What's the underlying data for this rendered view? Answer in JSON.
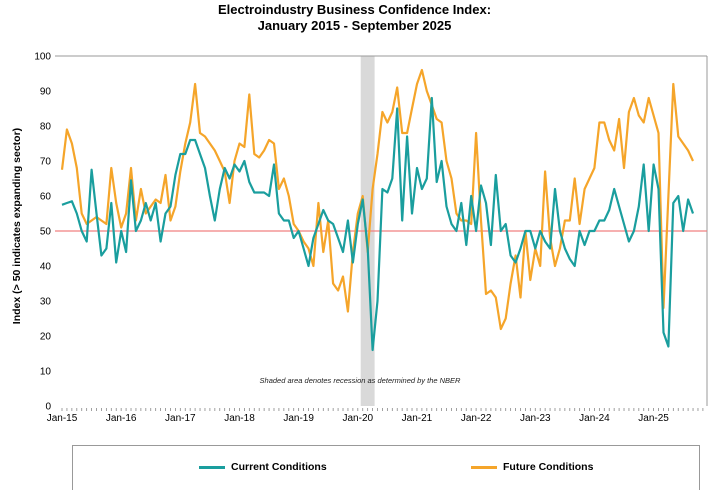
{
  "chart_data": {
    "type": "line",
    "title": [
      "Electroindustry Business Confidence Index:",
      "January 2015 - September 2025"
    ],
    "ylabel": "Index (> 50 indicates expanding sector)",
    "xlabel": "",
    "ylim": [
      0,
      100
    ],
    "yticks": [
      0,
      10,
      20,
      30,
      40,
      50,
      60,
      70,
      80,
      90,
      100
    ],
    "xtick_labels": [
      "Jan-15",
      "Jan-16",
      "Jan-17",
      "Jan-18",
      "Jan-19",
      "Jan-20",
      "Jan-21",
      "Jan-22",
      "Jan-23",
      "Jan-24",
      "Jan-25"
    ],
    "start": "2015-01",
    "end": "2025-09",
    "reference_line": 50,
    "recession_shading": [
      "2020-02",
      "2020-04"
    ],
    "annotation": "Shaded area denotes recession as determined by the NBER",
    "legend_position": "bottom",
    "colors": {
      "current": "#1a9e9e",
      "future": "#f5a52a",
      "reference": "#f08080",
      "recession": "#d9d9d9"
    },
    "series": [
      {
        "name": "Current Conditions",
        "values": [
          57.5,
          58,
          58.5,
          55,
          50,
          47,
          67.5,
          55,
          43,
          45,
          58,
          41,
          50,
          44,
          64.5,
          50,
          53,
          58,
          53,
          58,
          47,
          55,
          57,
          66,
          72,
          72,
          76,
          76,
          72,
          68,
          60,
          53,
          62,
          68,
          65,
          69,
          67,
          70,
          64,
          61,
          61,
          61,
          60,
          69,
          55,
          53,
          53,
          48,
          50,
          45,
          40,
          48,
          52,
          56,
          53,
          52,
          48,
          44,
          53,
          41,
          52,
          59,
          45,
          16,
          30,
          62,
          61,
          65,
          85,
          53,
          77,
          55,
          68,
          62,
          65,
          88,
          64,
          70,
          57,
          52,
          50,
          58,
          46,
          60,
          50,
          63,
          58,
          46,
          66,
          50,
          52,
          43,
          41,
          45,
          50,
          50,
          45,
          50,
          47,
          45,
          62,
          50,
          45,
          42,
          40,
          50,
          46,
          50,
          50,
          53,
          53,
          56,
          62,
          57,
          52,
          47,
          50,
          57,
          69,
          50,
          69,
          62,
          21,
          17,
          58,
          60,
          50,
          59,
          55
        ]
      },
      {
        "name": "Future Conditions",
        "values": [
          67.5,
          79,
          75,
          68,
          55,
          52,
          53,
          54,
          53,
          52,
          68,
          58,
          51,
          55,
          68,
          53,
          62,
          55,
          57,
          59,
          58,
          66,
          53,
          57,
          67,
          75,
          81,
          92,
          78,
          77,
          75,
          73,
          70,
          67,
          58,
          70,
          75,
          74,
          89,
          72,
          71,
          73,
          76,
          75,
          62,
          65,
          60,
          52,
          50,
          47,
          45,
          40,
          58,
          44,
          53,
          35,
          33,
          37,
          27,
          44,
          55,
          60,
          44,
          62,
          72,
          84,
          81,
          84,
          91,
          78,
          78,
          85,
          92,
          96,
          90,
          86,
          82,
          81,
          70,
          65,
          55,
          53,
          53,
          52,
          78,
          53,
          32,
          33,
          31,
          22,
          25,
          35,
          43,
          31,
          50,
          36,
          45,
          40,
          67,
          48,
          40,
          45,
          53,
          53,
          65,
          52,
          62,
          65,
          68,
          81,
          81,
          76,
          73,
          82,
          68,
          84,
          88,
          83,
          81,
          88,
          83,
          78,
          28,
          60,
          92,
          77,
          75,
          73,
          70
        ]
      }
    ]
  }
}
